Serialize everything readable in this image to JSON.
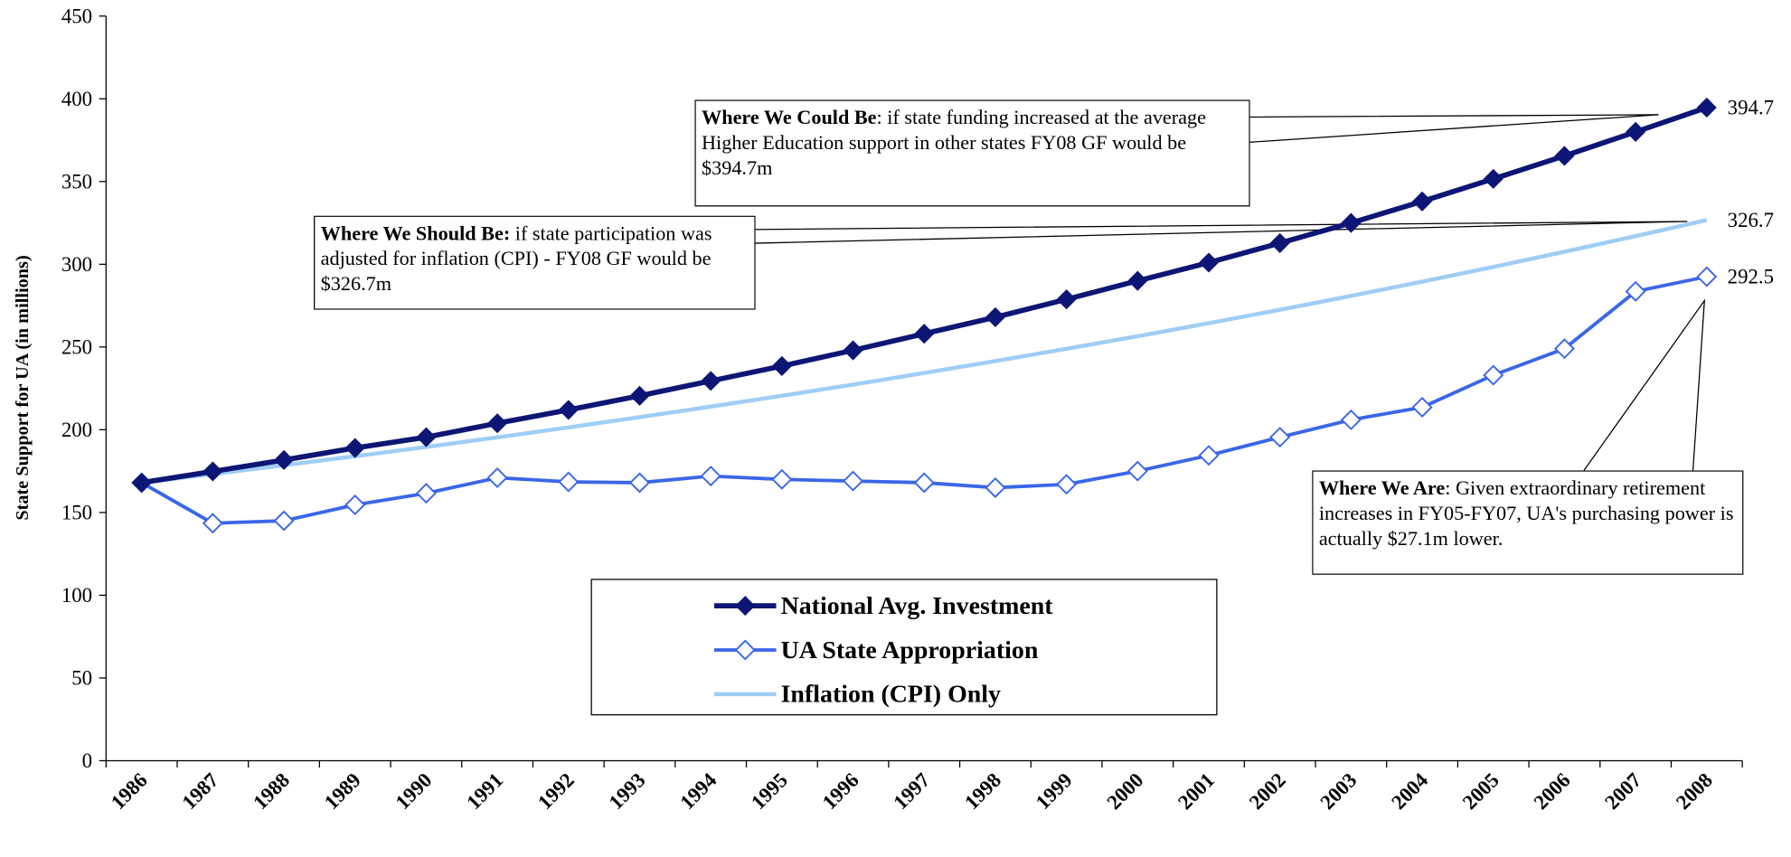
{
  "chart_data": {
    "type": "line",
    "y_label": "State Support for UA (in millions)",
    "categories": [
      "1986",
      "1987",
      "1988",
      "1989",
      "1990",
      "1991",
      "1992",
      "1993",
      "1994",
      "1995",
      "1996",
      "1997",
      "1998",
      "1999",
      "2000",
      "2001",
      "2002",
      "2003",
      "2004",
      "2005",
      "2006",
      "2007",
      "2008"
    ],
    "series": [
      {
        "name": "National Avg. Investment",
        "color": "#0d1575",
        "marker": "filled-diamond",
        "values": [
          168,
          174.8,
          181.7,
          189,
          195.5,
          203.9,
          212,
          220.5,
          229.5,
          238.5,
          248,
          258,
          268,
          278.8,
          290,
          301,
          312.8,
          325,
          338,
          351.6,
          365.5,
          380,
          394.7
        ]
      },
      {
        "name": "UA State Appropriation",
        "color": "#3a66e8",
        "marker": "hollow-diamond",
        "values": [
          168,
          143.5,
          145,
          154.6,
          161.6,
          171,
          168.5,
          168,
          172,
          170,
          169,
          168,
          165,
          167,
          175,
          184.5,
          195.5,
          206,
          213.6,
          233,
          249,
          283.6,
          292.5
        ]
      },
      {
        "name": "Inflation (CPI) Only",
        "color": "#9fcdf5",
        "marker": "none",
        "values": [
          168,
          173.2,
          178.5,
          184,
          189.6,
          195.4,
          201.4,
          207.6,
          214,
          220.5,
          227.3,
          234.3,
          241.5,
          248.9,
          256.5,
          264.4,
          272.5,
          280.9,
          289.5,
          298.4,
          307.6,
          317,
          326.7
        ]
      }
    ],
    "ylim": [
      0,
      450
    ],
    "yticks": [
      0,
      50,
      100,
      150,
      200,
      250,
      300,
      350,
      400,
      450
    ],
    "annotations": [
      {
        "bold": "Where We Could Be",
        "text": ": if state funding increased at the average Higher Education support in other states FY08 GF would be $394.7m"
      },
      {
        "bold": "Where We Should Be:",
        "text": " if state participation was adjusted for inflation (CPI) -  FY08 GF would be $326.7m"
      },
      {
        "bold": "Where We Are",
        "text": ": Given extraordinary retirement  increases in FY05-FY07, UA's purchasing power is actually $27.1m lower."
      }
    ]
  }
}
